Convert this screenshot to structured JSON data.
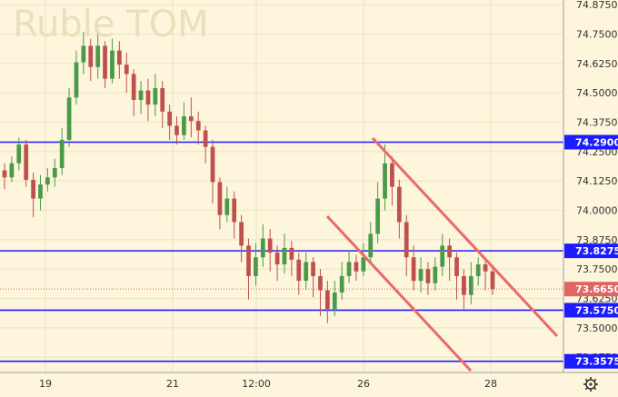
{
  "chart_data": {
    "type": "candlestick",
    "title": "Ruble TOM",
    "ylim": [
      73.31,
      74.895
    ],
    "y_ticks": [
      74.875,
      74.75,
      74.625,
      74.5,
      74.375,
      74.25,
      74.125,
      74.0,
      73.875,
      73.75,
      73.625,
      73.5,
      73.375
    ],
    "y_tick_labels": [
      "74.8750",
      "74.7500",
      "74.6250",
      "74.5000",
      "74.3750",
      "74.2500",
      "74.1250",
      "74.0000",
      "73.8750",
      "73.7500",
      "73.6250",
      "73.5000",
      "73.3750"
    ],
    "x_ticks": [
      "19",
      "21",
      "12:00",
      "26",
      "28"
    ],
    "grid": true,
    "horizontal_levels": [
      {
        "label": "74.2900",
        "value": 74.29,
        "color": "#1c1cff"
      },
      {
        "label": "73.8275",
        "value": 73.8275,
        "color": "#1c1cff"
      },
      {
        "label": "73.5750",
        "value": 73.575,
        "color": "#1c1cff"
      },
      {
        "label": "73.3575",
        "value": 73.3575,
        "color": "#1c1cff"
      }
    ],
    "last_price": {
      "label": "73.6650",
      "value": 73.665,
      "color": "#e06666"
    },
    "up_color": "#4a9a4a",
    "down_color": "#c0504d",
    "trend_channel_color": "#ea6a6a",
    "candles": [
      [
        74.17,
        74.14,
        74.2,
        74.09
      ],
      [
        74.14,
        74.2,
        74.23,
        74.12
      ],
      [
        74.2,
        74.28,
        74.31,
        74.17
      ],
      [
        74.28,
        74.13,
        74.3,
        74.1
      ],
      [
        74.13,
        74.05,
        74.16,
        73.97
      ],
      [
        74.05,
        74.11,
        74.15,
        74.0
      ],
      [
        74.11,
        74.14,
        74.18,
        74.08
      ],
      [
        74.14,
        74.18,
        74.22,
        74.1
      ],
      [
        74.18,
        74.3,
        74.35,
        74.15
      ],
      [
        74.3,
        74.48,
        74.52,
        74.27
      ],
      [
        74.48,
        74.63,
        74.68,
        74.45
      ],
      [
        74.63,
        74.7,
        74.76,
        74.58
      ],
      [
        74.7,
        74.61,
        74.73,
        74.55
      ],
      [
        74.61,
        74.7,
        74.75,
        74.56
      ],
      [
        74.7,
        74.56,
        74.72,
        74.52
      ],
      [
        74.56,
        74.68,
        74.73,
        74.54
      ],
      [
        74.68,
        74.62,
        74.72,
        74.56
      ],
      [
        74.62,
        74.58,
        74.67,
        74.5
      ],
      [
        74.58,
        74.47,
        74.6,
        74.4
      ],
      [
        74.47,
        74.51,
        74.55,
        74.41
      ],
      [
        74.51,
        74.45,
        74.56,
        74.38
      ],
      [
        74.45,
        74.52,
        74.58,
        74.4
      ],
      [
        74.52,
        74.42,
        74.55,
        74.35
      ],
      [
        74.42,
        74.36,
        74.45,
        74.3
      ],
      [
        74.36,
        74.32,
        74.4,
        74.28
      ],
      [
        74.32,
        74.4,
        74.46,
        74.3
      ],
      [
        74.4,
        74.38,
        74.48,
        74.31
      ],
      [
        74.38,
        74.34,
        74.42,
        74.28
      ],
      [
        74.34,
        74.27,
        74.36,
        74.2
      ],
      [
        74.27,
        74.12,
        74.3,
        74.03
      ],
      [
        74.12,
        73.98,
        74.14,
        73.92
      ],
      [
        73.98,
        74.05,
        74.1,
        73.95
      ],
      [
        74.05,
        73.95,
        74.08,
        73.88
      ],
      [
        73.95,
        73.85,
        73.98,
        73.78
      ],
      [
        73.85,
        73.72,
        73.88,
        73.62
      ],
      [
        73.72,
        73.8,
        73.86,
        73.68
      ],
      [
        73.8,
        73.88,
        73.94,
        73.76
      ],
      [
        73.88,
        73.82,
        73.92,
        73.74
      ],
      [
        73.82,
        73.77,
        73.85,
        73.7
      ],
      [
        73.77,
        73.84,
        73.9,
        73.73
      ],
      [
        73.84,
        73.79,
        73.87,
        73.72
      ],
      [
        73.79,
        73.7,
        73.82,
        73.64
      ],
      [
        73.7,
        73.78,
        73.82,
        73.66
      ],
      [
        73.78,
        73.72,
        73.8,
        73.63
      ],
      [
        73.72,
        73.66,
        73.75,
        73.55
      ],
      [
        73.66,
        73.58,
        73.7,
        73.52
      ],
      [
        73.58,
        73.65,
        73.7,
        73.55
      ],
      [
        73.65,
        73.72,
        73.78,
        73.62
      ],
      [
        73.72,
        73.78,
        73.83,
        73.69
      ],
      [
        73.78,
        73.74,
        73.81,
        73.7
      ],
      [
        73.74,
        73.8,
        73.86,
        73.72
      ],
      [
        73.8,
        73.9,
        73.95,
        73.77
      ],
      [
        73.9,
        74.05,
        74.12,
        73.86
      ],
      [
        74.05,
        74.2,
        74.28,
        74.0
      ],
      [
        74.2,
        74.1,
        74.23,
        74.02
      ],
      [
        74.1,
        73.95,
        74.13,
        73.88
      ],
      [
        73.95,
        73.8,
        73.98,
        73.72
      ],
      [
        73.8,
        73.7,
        73.85,
        73.66
      ],
      [
        73.7,
        73.75,
        73.8,
        73.65
      ],
      [
        73.75,
        73.69,
        73.78,
        73.64
      ],
      [
        73.69,
        73.76,
        73.8,
        73.66
      ],
      [
        73.76,
        73.85,
        73.9,
        73.72
      ],
      [
        73.85,
        73.8,
        73.88,
        73.7
      ],
      [
        73.8,
        73.72,
        73.82,
        73.62
      ],
      [
        73.72,
        73.64,
        73.75,
        73.58
      ],
      [
        73.64,
        73.72,
        73.78,
        73.6
      ],
      [
        73.72,
        73.77,
        73.8,
        73.68
      ],
      [
        73.77,
        73.74,
        73.79,
        73.66
      ],
      [
        73.74,
        73.665,
        73.76,
        73.64
      ]
    ]
  }
}
